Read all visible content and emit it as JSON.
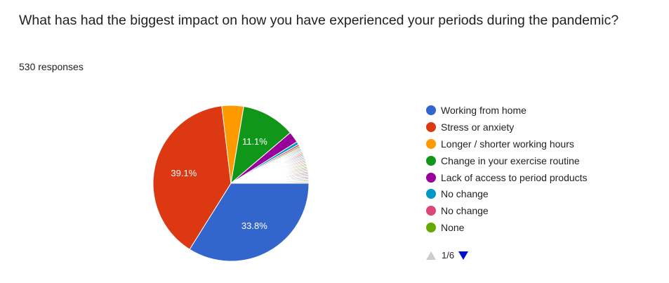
{
  "question": "What has had the biggest impact on how you have experienced your periods during the pandemic?",
  "responses": "530 responses",
  "chart_data": {
    "type": "pie",
    "total_responses": 530,
    "slices": [
      {
        "label": "Working from home",
        "value": 33.8,
        "color": "#3366cc",
        "show_label": "33.8%"
      },
      {
        "label": "Stress or anxiety",
        "value": 39.1,
        "color": "#dc3912",
        "show_label": "39.1%"
      },
      {
        "label": "Longer / shorter working hours",
        "value": 4.5,
        "color": "#ff9900",
        "show_label": ""
      },
      {
        "label": "Change in your exercise routine",
        "value": 11.1,
        "color": "#109618",
        "show_label": "11.1%"
      },
      {
        "label": "Lack of access to period products",
        "value": 2.3,
        "color": "#990099",
        "show_label": ""
      },
      {
        "label": "No change",
        "value": 0.6,
        "color": "#0099c6",
        "show_label": ""
      },
      {
        "label": "No change",
        "value": 0.4,
        "color": "#dd4477",
        "show_label": ""
      },
      {
        "label": "None",
        "value": 0.3,
        "color": "#66aa00",
        "show_label": ""
      },
      {
        "label": "",
        "value": 0.2,
        "color": "#b82e2e",
        "show_label": ""
      },
      {
        "label": "",
        "value": 0.2,
        "color": "#316395",
        "show_label": ""
      },
      {
        "label": "",
        "value": 0.2,
        "color": "#994499",
        "show_label": ""
      },
      {
        "label": "",
        "value": 0.2,
        "color": "#22aa99",
        "show_label": ""
      },
      {
        "label": "",
        "value": 0.2,
        "color": "#aaaa11",
        "show_label": ""
      },
      {
        "label": "",
        "value": 0.2,
        "color": "#6633cc",
        "show_label": ""
      },
      {
        "label": "",
        "value": 0.2,
        "color": "#e67300",
        "show_label": ""
      },
      {
        "label": "",
        "value": 0.2,
        "color": "#8b0707",
        "show_label": ""
      },
      {
        "label": "",
        "value": 0.2,
        "color": "#651067",
        "show_label": ""
      },
      {
        "label": "",
        "value": 0.2,
        "color": "#329262",
        "show_label": ""
      },
      {
        "label": "",
        "value": 0.2,
        "color": "#5574a6",
        "show_label": ""
      },
      {
        "label": "",
        "value": 0.2,
        "color": "#3b3eac",
        "show_label": ""
      },
      {
        "label": "",
        "value": 0.2,
        "color": "#b77322",
        "show_label": ""
      },
      {
        "label": "",
        "value": 0.2,
        "color": "#16d620",
        "show_label": ""
      },
      {
        "label": "",
        "value": 0.2,
        "color": "#b91383",
        "show_label": ""
      },
      {
        "label": "",
        "value": 0.2,
        "color": "#f4359e",
        "show_label": ""
      },
      {
        "label": "",
        "value": 0.2,
        "color": "#9c5935",
        "show_label": ""
      },
      {
        "label": "",
        "value": 0.2,
        "color": "#a9c413",
        "show_label": ""
      },
      {
        "label": "",
        "value": 0.2,
        "color": "#2a778d",
        "show_label": ""
      },
      {
        "label": "",
        "value": 0.2,
        "color": "#668d1c",
        "show_label": ""
      },
      {
        "label": "",
        "value": 0.2,
        "color": "#bea413",
        "show_label": ""
      },
      {
        "label": "",
        "value": 0.2,
        "color": "#0c5922",
        "show_label": ""
      },
      {
        "label": "",
        "value": 0.2,
        "color": "#743411",
        "show_label": ""
      },
      {
        "label": "",
        "value": 0.2,
        "color": "#3366cc",
        "show_label": ""
      },
      {
        "label": "",
        "value": 0.2,
        "color": "#dc3912",
        "show_label": ""
      },
      {
        "label": "",
        "value": 0.2,
        "color": "#ff9900",
        "show_label": ""
      },
      {
        "label": "",
        "value": 0.2,
        "color": "#109618",
        "show_label": ""
      },
      {
        "label": "",
        "value": 0.2,
        "color": "#990099",
        "show_label": ""
      },
      {
        "label": "",
        "value": 0.2,
        "color": "#0099c6",
        "show_label": ""
      },
      {
        "label": "",
        "value": 0.2,
        "color": "#dd4477",
        "show_label": ""
      },
      {
        "label": "",
        "value": 0.2,
        "color": "#66aa00",
        "show_label": ""
      },
      {
        "label": "",
        "value": 0.2,
        "color": "#b82e2e",
        "show_label": ""
      },
      {
        "label": "",
        "value": 0.2,
        "color": "#316395",
        "show_label": ""
      },
      {
        "label": "",
        "value": 0.2,
        "color": "#994499",
        "show_label": ""
      },
      {
        "label": "",
        "value": 0.2,
        "color": "#22aa99",
        "show_label": ""
      },
      {
        "label": "",
        "value": 0.2,
        "color": "#aaaa11",
        "show_label": ""
      },
      {
        "label": "",
        "value": 0.2,
        "color": "#6633cc",
        "show_label": ""
      },
      {
        "label": "",
        "value": 0.2,
        "color": "#e67300",
        "show_label": ""
      }
    ],
    "legend_position": "right"
  },
  "legend": [
    {
      "label": "Working from home",
      "color": "#3366cc"
    },
    {
      "label": "Stress or anxiety",
      "color": "#dc3912"
    },
    {
      "label": "Longer / shorter working hours",
      "color": "#ff9900"
    },
    {
      "label": "Change in your exercise routine",
      "color": "#109618"
    },
    {
      "label": "Lack of access to period products",
      "color": "#990099"
    },
    {
      "label": "No change",
      "color": "#0099c6"
    },
    {
      "label": "No change",
      "color": "#dd4477"
    },
    {
      "label": "None",
      "color": "#66aa00"
    }
  ],
  "pager": {
    "label": "1/6",
    "up_icon": "triangle-up-icon",
    "down_icon": "triangle-down-icon"
  }
}
